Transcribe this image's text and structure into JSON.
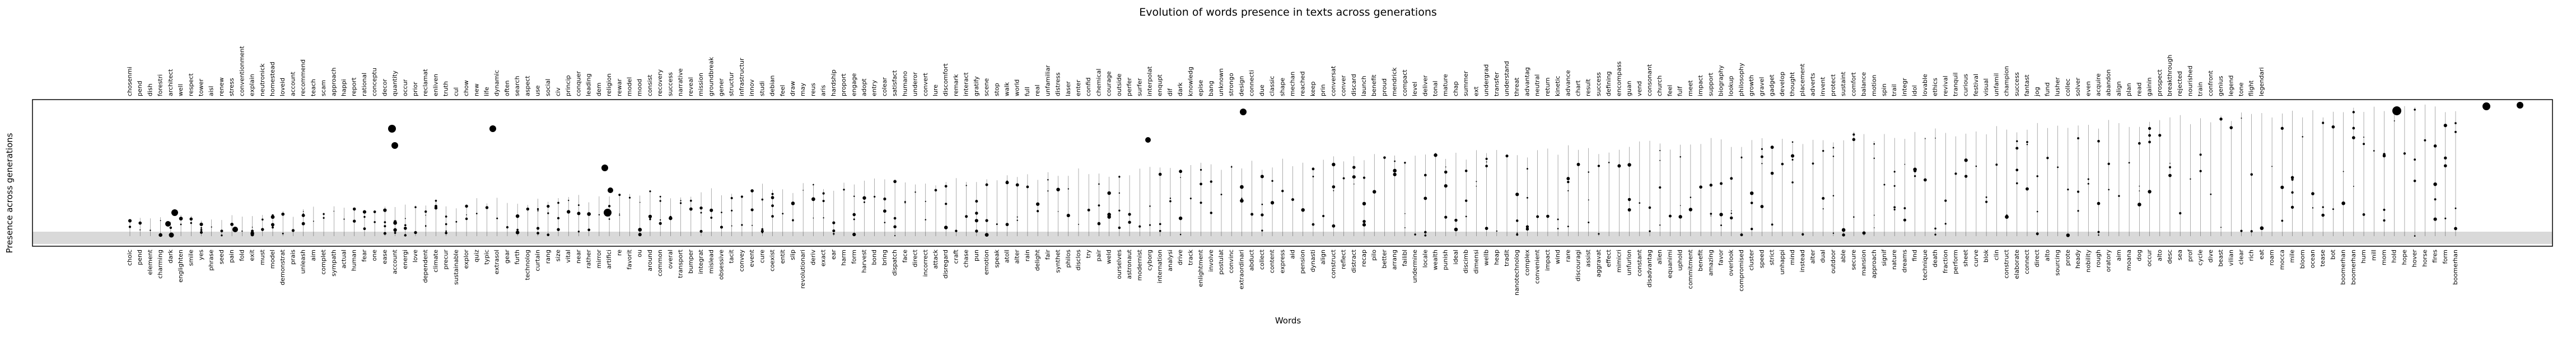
{
  "chart_data": {
    "type": "scatter",
    "title": "Evolution of words presence in texts across generations",
    "xlabel": "Words",
    "ylabel": "Presence across generations",
    "grid": false,
    "legend": "none",
    "colors": {
      "marker": "#000000",
      "stem": "#000000",
      "band": "#d9d9d9",
      "frame": "#000000"
    },
    "top_tick_labels": [
      "chosenmi",
      "pend",
      "dish",
      "forestri",
      "architect",
      "well",
      "respect",
      "tower",
      "aisl",
      "renew",
      "stress",
      "conventionment",
      "explain",
      "neutronick",
      "homestead",
      "loveid",
      "account",
      "recommend",
      "teach",
      "scam",
      "approach",
      "happi",
      "report",
      "rational",
      "conceptu",
      "decor",
      "quantity",
      "occur",
      "prior",
      "reclamat",
      "enliven",
      "truth",
      "cul",
      "chow",
      "new",
      "life",
      "dynamic",
      "often",
      "search",
      "aspect",
      "use",
      "social",
      "civ",
      "princip",
      "conquer",
      "leading",
      "dem",
      "religion",
      "rewar",
      "model",
      "mood",
      "consist",
      "recovery",
      "success",
      "narrative",
      "reveal",
      "mission",
      "groundbreak",
      "gener",
      "structur",
      "infrastructur",
      "innov",
      "studi",
      "debian",
      "feel",
      "draw",
      "may",
      "reus",
      "aris",
      "hardship",
      "proport",
      "engage",
      "adopt",
      "entry",
      "colear",
      "satisfact",
      "humano",
      "underor",
      "convert",
      "lure",
      "discomfort",
      "remark",
      "interact",
      "gratify",
      "scene",
      "stop",
      "walk",
      "world",
      "full",
      "real",
      "unfamiliar",
      "distress",
      "laser",
      "enter",
      "confid",
      "chemical",
      "courage",
      "outside",
      "perfer",
      "surfer",
      "interpolat",
      "enqupt",
      "dif",
      "dark",
      "knowledg",
      "epise",
      "bang",
      "unknown",
      "strongo",
      "design",
      "connecti",
      "due",
      "classic",
      "shape",
      "mechan",
      "reached",
      "keep",
      "prin",
      "conversat",
      "conver",
      "discard",
      "launch",
      "benefit",
      "proud",
      "mendrick",
      "compact",
      "level",
      "deliver",
      "tonal",
      "mature",
      "chap",
      "summer",
      "ext",
      "undergrad",
      "transfer",
      "understand",
      "threat",
      "advantag",
      "neutral",
      "return",
      "kinetic",
      "advance",
      "chart",
      "result",
      "success",
      "defining",
      "encompass",
      "guan",
      "vend",
      "consonant",
      "church",
      "feel",
      "fulf",
      "meet",
      "impact",
      "support",
      "biography",
      "lookup",
      "philosophy",
      "growth",
      "gravel",
      "gadget",
      "develop",
      "thought",
      "placement",
      "adverts",
      "invent",
      "protect",
      "sustaint",
      "comfort",
      "balance",
      "motion",
      "spin",
      "trail",
      "integr",
      "idol",
      "lovable",
      "ethics",
      "revival",
      "tranquil",
      "curious",
      "festival",
      "visual",
      "unfamil",
      "champion",
      "success",
      "fantast",
      "jog",
      "fund",
      "lusher",
      "collec",
      "solver",
      "even",
      "acquire",
      "abandon",
      "align",
      "plan",
      "read",
      "gainin",
      "prospect",
      "breakthrough",
      "rejected",
      "nourished",
      "train",
      "confront",
      "genius",
      "legend",
      "tone",
      "flight",
      "legendari"
    ],
    "bottom_tick_labels": [
      "choic",
      "pend",
      "element",
      "charming",
      "dark",
      "englighten",
      "smile",
      "yes",
      "phrase",
      "seed",
      "pain",
      "fold",
      "exit",
      "must",
      "model",
      "demonstrat",
      "prais",
      "unleash",
      "aim",
      "complet",
      "sympath",
      "actual",
      "human",
      "fear",
      "one",
      "ease",
      "account",
      "energi",
      "love",
      "dependent",
      "climate",
      "precur",
      "sustainable",
      "explor",
      "quiz",
      "typic",
      "extrasol",
      "gear",
      "furth",
      "technolog",
      "curtain",
      "rang",
      "size",
      "vital",
      "near",
      "rather",
      "mirror",
      "artifici",
      "re",
      "favorit",
      "ou",
      "around",
      "common",
      "overal",
      "transport",
      "bumper",
      "integrat",
      "mislead",
      "obsessive",
      "tacit",
      "convey",
      "event",
      "cure",
      "coexist",
      "entit",
      "slip",
      "revolutionari",
      "deriv",
      "exact",
      "ear",
      "harm",
      "form",
      "harvest",
      "bond",
      "bring",
      "dispatch",
      "face",
      "direct",
      "incorrect",
      "attack",
      "disregard",
      "craft",
      "chase",
      "pun",
      "emotion",
      "speak",
      "atoll",
      "alter",
      "rain",
      "delight",
      "fair",
      "synthet",
      "philos",
      "disclos",
      "try",
      "pair",
      "weld",
      "ourselves",
      "astronaut",
      "modernist",
      "cyborg",
      "internation",
      "analysi",
      "drive",
      "track",
      "enlightment",
      "involve",
      "postulat",
      "convinc",
      "extraordinari",
      "abduct",
      "collect",
      "content",
      "express",
      "aid",
      "pension",
      "dynasti",
      "align",
      "construct",
      "reflect",
      "distract",
      "recap",
      "pilo",
      "better",
      "arrang",
      "failibl",
      "undermine",
      "locale",
      "wealth",
      "punish",
      "ideal",
      "discimb",
      "dimensi",
      "wellb",
      "heap",
      "tradit",
      "nanotechnolog",
      "complex",
      "convenient",
      "impact",
      "wind",
      "rare",
      "discouragi",
      "assist",
      "aggravat",
      "effect",
      "mimicri",
      "unfurlon",
      "constant",
      "disadvantag",
      "alien",
      "equanimi",
      "uphold",
      "commitment",
      "benefit",
      "amazing",
      "favor",
      "overlook",
      "compromised",
      "cluster",
      "speed",
      "strict",
      "unhappi",
      "mind",
      "instead",
      "alter",
      "dual",
      "outdoor",
      "able",
      "secure",
      "mansion",
      "approach",
      "signif",
      "nature",
      "dreams",
      "find",
      "technique",
      "death",
      "fraction",
      "perform",
      "sheet",
      "curve",
      "blok",
      "clin",
      "construct",
      "elaborate",
      "connect",
      "direct",
      "alto",
      "sourcing",
      "prote",
      "heady",
      "nobility",
      "rough",
      "oratory",
      "aim",
      "moana",
      "dog",
      "occur",
      "alto",
      "desc",
      "sea",
      "prof",
      "cycle",
      "dive",
      "beast",
      "vilian",
      "clear",
      "rich",
      "eat",
      "roam",
      "mocca",
      "mile",
      "bloom",
      "ocean",
      "tease",
      "bot",
      "boomerhan",
      "boomerhan",
      "hum",
      "mill",
      "mom",
      "hold",
      "hope",
      "hover",
      "horse",
      "fires",
      "form",
      "boomerhan"
    ]
  }
}
